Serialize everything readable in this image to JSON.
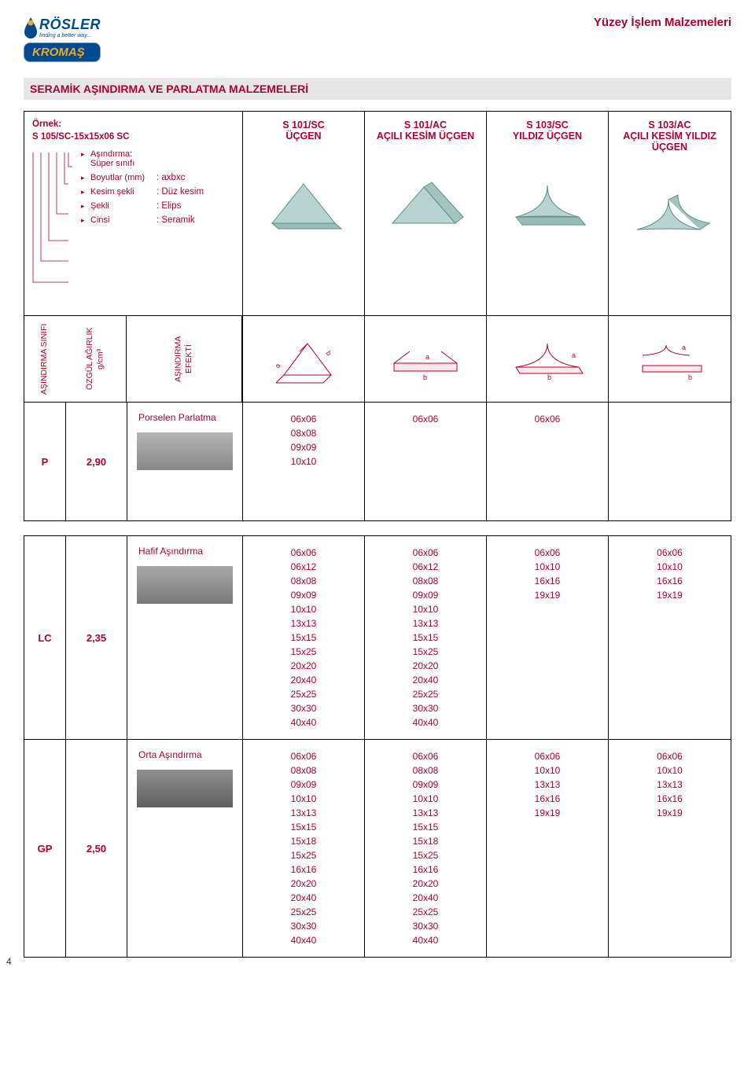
{
  "header": {
    "brand_top": "RÖSLER",
    "brand_tag": "finding a better way...",
    "brand_bottom": "KROMAŞ",
    "right_text": "Yüzey İşlem Malzemeleri"
  },
  "title": "SERAMİK AŞINDIRMA VE PARLATMA MALZEMELERİ",
  "legend": {
    "label": "Örnek:",
    "code": "S 105/SC-15x15x06 SC",
    "rows": [
      {
        "k": "Aşındırma: Süper sınıfı",
        "v": ""
      },
      {
        "k": "Boyutlar (mm)",
        "v": ": axbxc"
      },
      {
        "k": "Kesim şekli",
        "v": ": Düz kesim"
      },
      {
        "k": "Şekli",
        "v": ": Elips"
      },
      {
        "k": "Cinsi",
        "v": ": Seramik"
      }
    ]
  },
  "columns": [
    {
      "t1": "S 101/SC",
      "t2": "ÜÇGEN"
    },
    {
      "t1": "S 101/AC",
      "t2": "AÇILI KESİM ÜÇGEN"
    },
    {
      "t1": "S 103/SC",
      "t2": "YILDIZ ÜÇGEN"
    },
    {
      "t1": "S 103/AC",
      "t2": "AÇILI KESİM YILDIZ ÜÇGEN"
    }
  ],
  "axis": {
    "class": "AŞINDIRMA SINIFI",
    "density": "ÖZGÜL AĞIRLIK g/cm³",
    "effect": "AŞINDIRMA EFEKTİ"
  },
  "diagrams": {
    "letters": {
      "a": "a",
      "b": "b"
    }
  },
  "rows": [
    {
      "class": "P",
      "density": "2,90",
      "effect_name": "Porselen Parlatma",
      "swatch_class": "p",
      "sizes": [
        [
          "06x06",
          "08x08",
          "09x09",
          "10x10"
        ],
        [
          "06x06"
        ],
        [
          "06x06"
        ],
        []
      ]
    },
    {
      "class": "LC",
      "density": "2,35",
      "effect_name": "Hafif Aşındırma",
      "swatch_class": "",
      "sizes": [
        [
          "06x06",
          "06x12",
          "08x08",
          "09x09",
          "10x10",
          "13x13",
          "15x15",
          "15x25",
          "20x20",
          "20x40",
          "25x25",
          "30x30",
          "40x40"
        ],
        [
          "06x06",
          "06x12",
          "08x08",
          "09x09",
          "10x10",
          "13x13",
          "15x15",
          "15x25",
          "20x20",
          "20x40",
          "25x25",
          "30x30",
          "40x40"
        ],
        [
          "06x06",
          "10x10",
          "16x16",
          "19x19"
        ],
        [
          "06x06",
          "10x10",
          "16x16",
          "19x19"
        ]
      ]
    },
    {
      "class": "GP",
      "density": "2,50",
      "effect_name": "Orta Aşındırma",
      "swatch_class": "gp",
      "sizes": [
        [
          "06x06",
          "08x08",
          "09x09",
          "10x10",
          "13x13",
          "15x15",
          "15x18",
          "15x25",
          "16x16",
          "20x20",
          "20x40",
          "25x25",
          "30x30",
          "40x40"
        ],
        [
          "06x06",
          "08x08",
          "09x09",
          "10x10",
          "13x13",
          "15x15",
          "15x18",
          "15x25",
          "16x16",
          "20x20",
          "20x40",
          "25x25",
          "30x30",
          "40x40"
        ],
        [
          "06x06",
          "10x10",
          "13x13",
          "16x16",
          "19x19"
        ],
        [
          "06x06",
          "10x10",
          "13x13",
          "16x16",
          "19x19"
        ]
      ]
    }
  ],
  "page_number": "4",
  "colors": {
    "brand_blue": "#004a8f",
    "brand_gold": "#f5a623",
    "accent_red": "#b00030",
    "gray_bg": "#e6e6e6",
    "shape_fill": "#b8d4d1",
    "shape_stroke": "#5a8f8a"
  }
}
